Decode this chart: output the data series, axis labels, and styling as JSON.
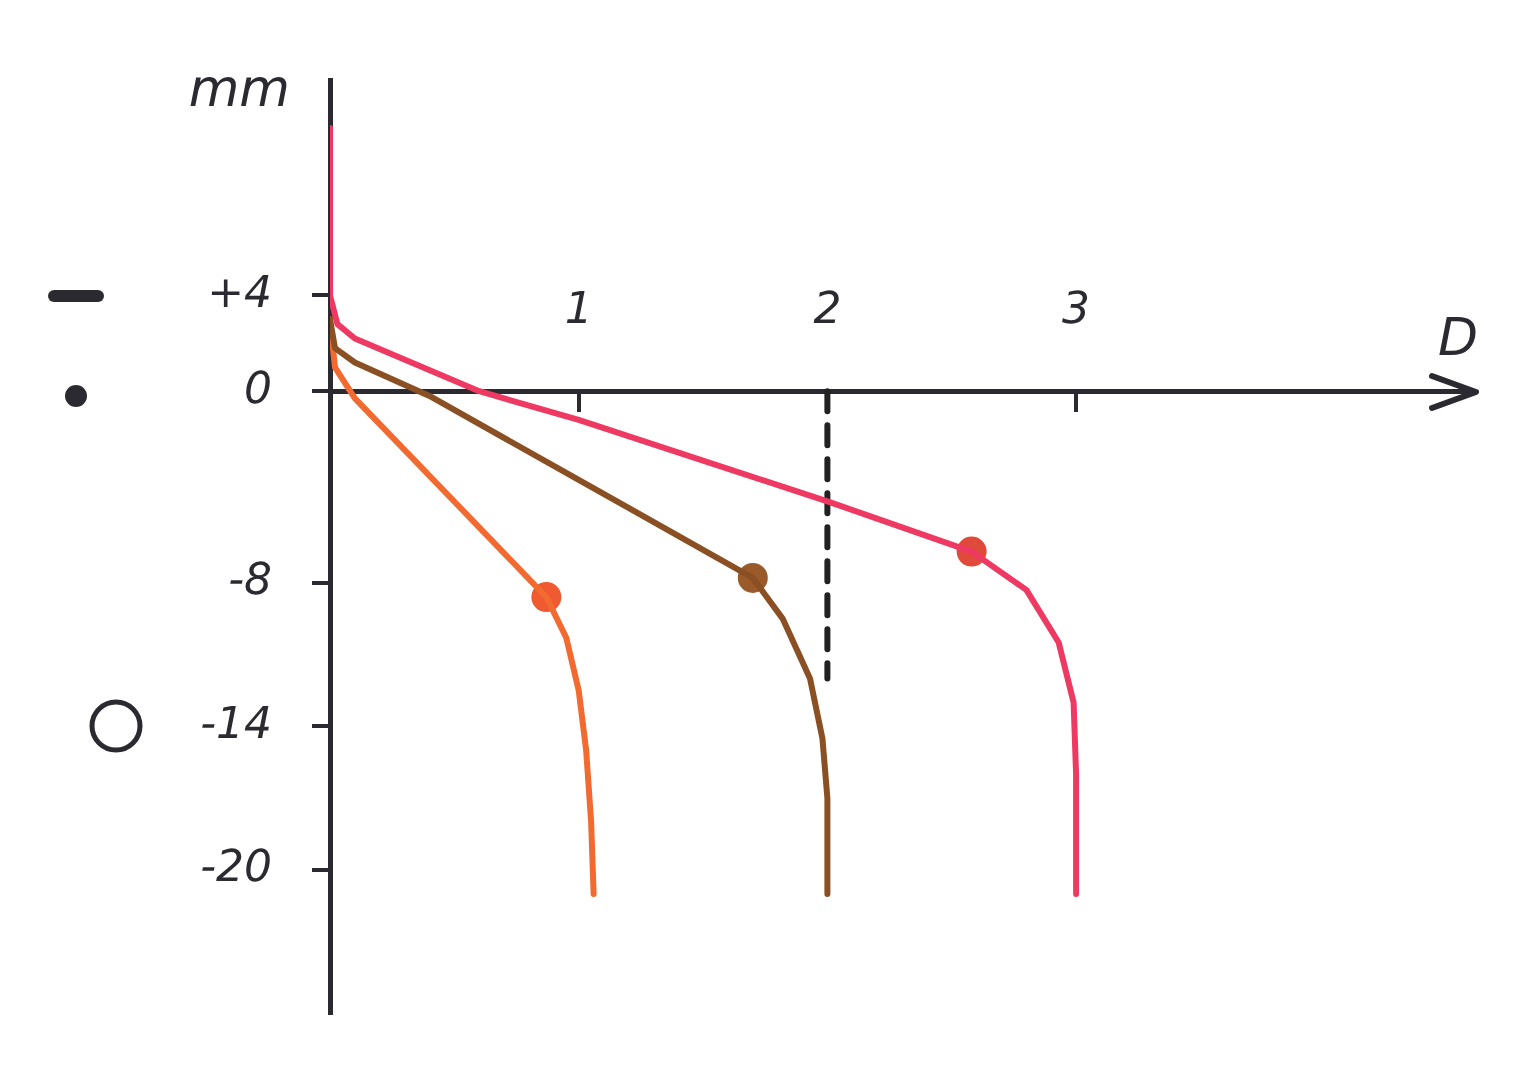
{
  "chart_data": {
    "type": "line",
    "xlabel": "D",
    "ylabel": "mm",
    "xlim": [
      0,
      4.6
    ],
    "ylim": [
      -26,
      13
    ],
    "xticks": [
      1,
      2,
      3
    ],
    "yticks": [
      {
        "value": 4,
        "label": "+4"
      },
      0,
      -8,
      -14,
      -20
    ],
    "grid": false,
    "legend": false,
    "series": [
      {
        "type": "line",
        "color": "#ee3a62",
        "x": [
          0,
          0,
          0.03,
          0.1,
          0.6,
          1,
          2,
          2.58,
          2.8,
          2.93,
          2.99,
          3.0,
          3.0
        ],
        "values": [
          11,
          4,
          2.8,
          2.2,
          0,
          -1.2,
          -4.6,
          -6.7,
          -8.3,
          -10.5,
          -13,
          -16,
          -21
        ]
      },
      {
        "type": "line",
        "color": "#8a4f22",
        "x": [
          0,
          0.02,
          0.1,
          0.4,
          1,
          1.7,
          1.82,
          1.93,
          1.98,
          2.0,
          2.0
        ],
        "values": [
          3,
          1.8,
          1.2,
          -0.2,
          -3.7,
          -7.8,
          -9.5,
          -12,
          -14.5,
          -17,
          -21
        ]
      },
      {
        "type": "line",
        "color": "#f26a30",
        "x": [
          0,
          0.02,
          0.1,
          0.87,
          0.95,
          1.0,
          1.03,
          1.05,
          1.06
        ],
        "values": [
          3,
          1,
          -0.3,
          -8.6,
          -10.3,
          -12.5,
          -15,
          -18,
          -21
        ]
      },
      {
        "type": "scatter",
        "marker": "circle",
        "color": "#e04a3a",
        "x": [
          2.58
        ],
        "values": [
          -6.7
        ]
      },
      {
        "type": "scatter",
        "marker": "circle",
        "color": "#9a5a2a",
        "x": [
          1.7
        ],
        "values": [
          -7.8
        ]
      },
      {
        "type": "scatter",
        "marker": "circle",
        "color": "#f05a30",
        "x": [
          0.87
        ],
        "values": [
          -8.6
        ]
      },
      {
        "type": "line",
        "line_style": "dashed",
        "color": "#222222",
        "x": [
          2,
          2
        ],
        "values": [
          0,
          -12
        ]
      }
    ]
  }
}
